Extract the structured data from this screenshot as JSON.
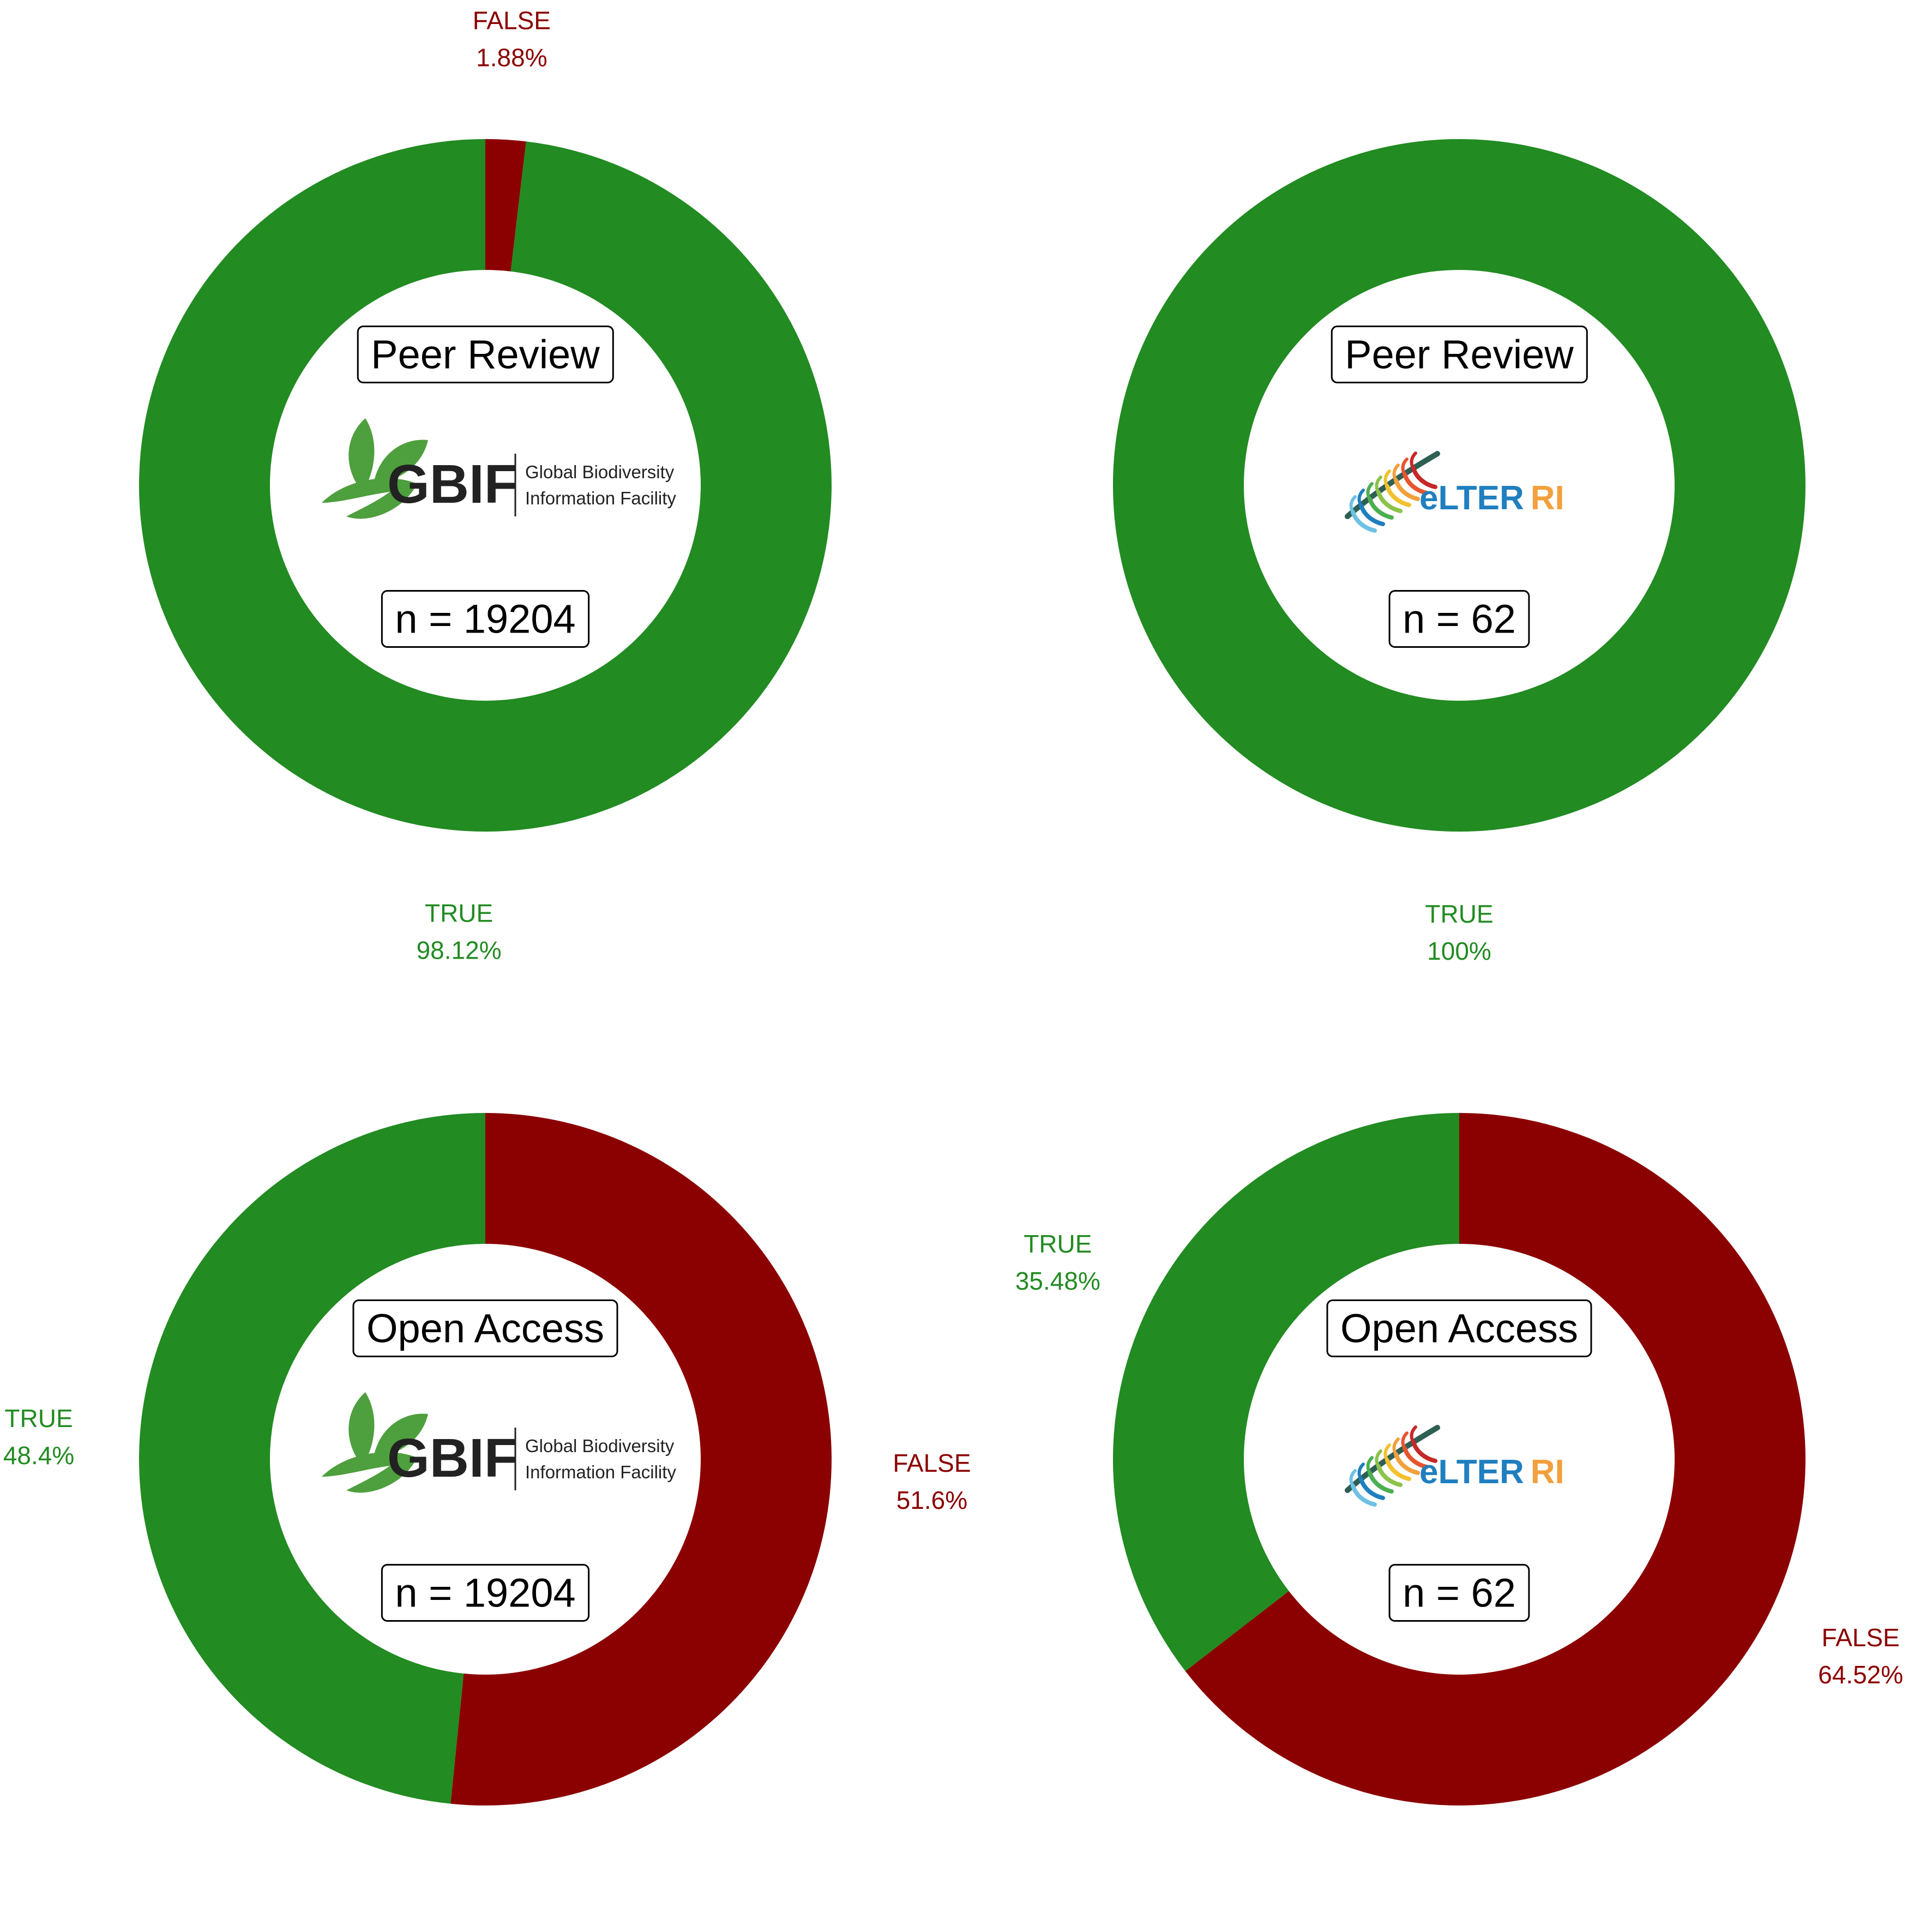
{
  "colors": {
    "true": "#228B22",
    "false": "#8B0000",
    "gbif_green": "#4E9F3D",
    "gbif_dark": "#222222",
    "elter_blue": "#1F7FBF",
    "elter_orange": "#F2A03D"
  },
  "logos": {
    "gbif": {
      "icon": "gbif-leaf-icon",
      "wordmark": "GBIF",
      "line1": "Global Biodiversity",
      "line2": "Information Facility"
    },
    "elter": {
      "icon": "elter-fern-icon",
      "word_main": "eLTER",
      "word_suffix": "RI"
    }
  },
  "chart_data": [
    {
      "type": "pie",
      "donut": true,
      "title": "Peer Review",
      "n_label": "n = 19204",
      "logo": "gbif",
      "slices": [
        {
          "label": "FALSE",
          "value": 1.88,
          "value_label": "1.88%",
          "color": "#8B0000"
        },
        {
          "label": "TRUE",
          "value": 98.12,
          "value_label": "98.12%",
          "color": "#228B22"
        }
      ]
    },
    {
      "type": "pie",
      "donut": true,
      "title": "Peer Review",
      "n_label": "n = 62",
      "logo": "elter",
      "slices": [
        {
          "label": "TRUE",
          "value": 100,
          "value_label": "100%",
          "color": "#228B22"
        }
      ]
    },
    {
      "type": "pie",
      "donut": true,
      "title": "Open Access",
      "n_label": "n = 19204",
      "logo": "gbif",
      "slices": [
        {
          "label": "FALSE",
          "value": 51.6,
          "value_label": "51.6%",
          "color": "#8B0000"
        },
        {
          "label": "TRUE",
          "value": 48.4,
          "value_label": "48.4%",
          "color": "#228B22"
        }
      ]
    },
    {
      "type": "pie",
      "donut": true,
      "title": "Open Access",
      "n_label": "n = 62",
      "logo": "elter",
      "slices": [
        {
          "label": "FALSE",
          "value": 64.52,
          "value_label": "64.52%",
          "color": "#8B0000"
        },
        {
          "label": "TRUE",
          "value": 35.48,
          "value_label": "35.48%",
          "color": "#228B22"
        }
      ]
    }
  ]
}
